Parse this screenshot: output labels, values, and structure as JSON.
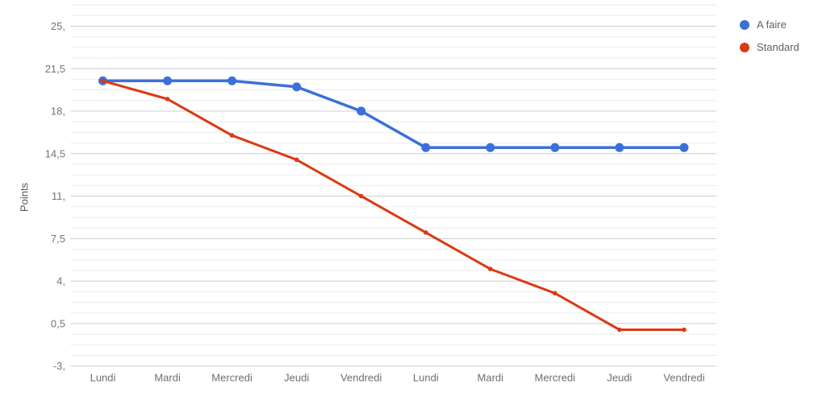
{
  "chart_data": {
    "type": "line",
    "title": "",
    "xlabel": "",
    "ylabel": "Points",
    "categories": [
      "Lundi",
      "Mardi",
      "Mercredi",
      "Jeudi",
      "Vendredi",
      "Lundi",
      "Mardi",
      "Mercredi",
      "Jeudi",
      "Vendredi"
    ],
    "series": [
      {
        "name": "A faire",
        "color": "#3C70D9",
        "line_width": 3.5,
        "point_radius": 5.5,
        "values": [
          20.5,
          20.5,
          20.5,
          20,
          18,
          15,
          15,
          15,
          15,
          15
        ]
      },
      {
        "name": "Standard",
        "color": "#DC3912",
        "line_width": 3,
        "point_radius": 2.8,
        "values": [
          20.5,
          19,
          16,
          14,
          11,
          8,
          5,
          3,
          0,
          0
        ]
      }
    ],
    "y_ticks": [
      {
        "label": "25,",
        "value": 25
      },
      {
        "label": "21,5",
        "value": 21.5
      },
      {
        "label": "18,",
        "value": 18
      },
      {
        "label": "14,5",
        "value": 14.5
      },
      {
        "label": "11,",
        "value": 11
      },
      {
        "label": "7,5",
        "value": 7.5
      },
      {
        "label": "4,",
        "value": 4
      },
      {
        "label": "0,5",
        "value": 0.5
      },
      {
        "label": "-3,",
        "value": -3
      }
    ],
    "ylim": [
      -3,
      26.9
    ],
    "minor_tick_step": 0.875,
    "grid": true,
    "legend_position": "right"
  },
  "colors": {
    "background": "#ffffff",
    "major_gridline": "#cccccc",
    "minor_gridline": "#ebebeb",
    "tick_text": "#757575",
    "category_text": "#6e6e6e",
    "legend_text": "#616161",
    "axis_title_text": "#555555"
  }
}
